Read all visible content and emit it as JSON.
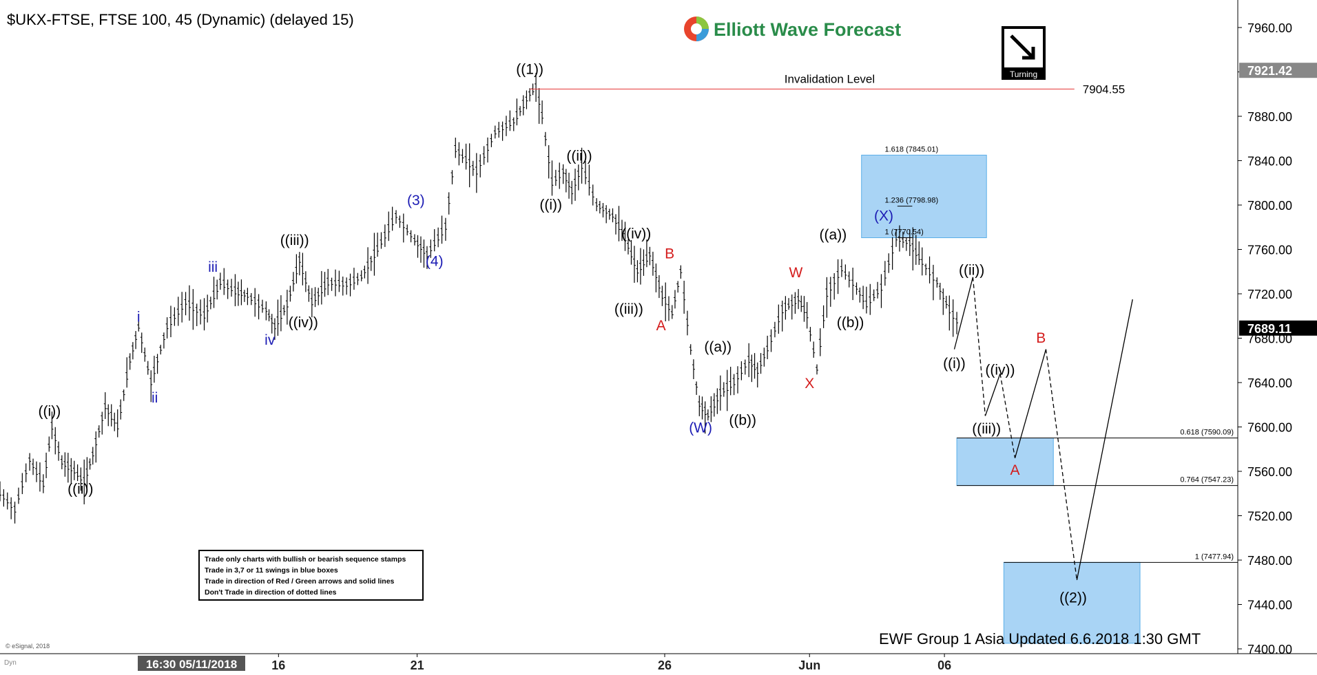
{
  "header": {
    "title": "$UKX-FTSE, FTSE 100, 45 (Dynamic) (delayed 15)",
    "logo_text": "Elliott Wave Forecast",
    "turning_label": "Turning"
  },
  "footer": {
    "update_text": "EWF Group 1 Asia Updated 6.6.2018 1:30 GMT",
    "copyright": "© eSignal, 2018",
    "dyn_label": "Dyn",
    "x_cursor_label": "16:30 05/11/2018"
  },
  "rules_box": [
    "Trade only charts with bullish or bearish sequence stamps",
    "Trade in 3,7 or 11 swings in blue boxes",
    "Trade in direction of Red / Green arrows and solid lines",
    "Don't Trade in direction of dotted lines"
  ],
  "chart_data": {
    "type": "ohlc",
    "symbol": "$UKX-FTSE",
    "timeframe": "45 min",
    "ylim": [
      7400,
      7980
    ],
    "y_ticks": [
      7400,
      7440,
      7480,
      7520,
      7560,
      7600,
      7640,
      7680,
      7720,
      7760,
      7800,
      7840,
      7880,
      7920,
      7960
    ],
    "y_tick_labels": [
      "7400.00",
      "7440.00",
      "7480.00",
      "7520.00",
      "7560.00",
      "7600.00",
      "7640.00",
      "7680.00",
      "7720.00",
      "7760.00",
      "7800.00",
      "7840.00",
      "7880.00",
      "7920.00",
      "7960.00"
    ],
    "x_ticks": [
      {
        "label": "16",
        "t": 0.225
      },
      {
        "label": "21",
        "t": 0.337
      },
      {
        "label": "26",
        "t": 0.537
      },
      {
        "label": "Jun",
        "t": 0.654
      },
      {
        "label": "06",
        "t": 0.763
      }
    ],
    "price_labels": [
      {
        "label": "7921.42",
        "price": 7921.42,
        "style": "gray"
      },
      {
        "label": "7689.11",
        "price": 7689.11,
        "style": "black"
      }
    ],
    "price_path": [
      [
        0.0,
        7540
      ],
      [
        0.012,
        7525
      ],
      [
        0.024,
        7570
      ],
      [
        0.035,
        7548
      ],
      [
        0.042,
        7600
      ],
      [
        0.05,
        7568
      ],
      [
        0.06,
        7560
      ],
      [
        0.068,
        7550
      ],
      [
        0.075,
        7575
      ],
      [
        0.085,
        7618
      ],
      [
        0.095,
        7600
      ],
      [
        0.105,
        7660
      ],
      [
        0.112,
        7690
      ],
      [
        0.122,
        7640
      ],
      [
        0.135,
        7690
      ],
      [
        0.15,
        7712
      ],
      [
        0.165,
        7700
      ],
      [
        0.178,
        7730
      ],
      [
        0.19,
        7722
      ],
      [
        0.2,
        7718
      ],
      [
        0.215,
        7705
      ],
      [
        0.222,
        7690
      ],
      [
        0.232,
        7710
      ],
      [
        0.242,
        7750
      ],
      [
        0.252,
        7712
      ],
      [
        0.265,
        7730
      ],
      [
        0.28,
        7728
      ],
      [
        0.292,
        7735
      ],
      [
        0.305,
        7760
      ],
      [
        0.32,
        7790
      ],
      [
        0.335,
        7768
      ],
      [
        0.345,
        7755
      ],
      [
        0.36,
        7780
      ],
      [
        0.368,
        7850
      ],
      [
        0.385,
        7830
      ],
      [
        0.4,
        7865
      ],
      [
        0.415,
        7875
      ],
      [
        0.428,
        7900
      ],
      [
        0.433,
        7906
      ],
      [
        0.438,
        7880
      ],
      [
        0.446,
        7820
      ],
      [
        0.455,
        7830
      ],
      [
        0.462,
        7812
      ],
      [
        0.47,
        7835
      ],
      [
        0.482,
        7800
      ],
      [
        0.495,
        7790
      ],
      [
        0.505,
        7770
      ],
      [
        0.515,
        7740
      ],
      [
        0.525,
        7755
      ],
      [
        0.535,
        7718
      ],
      [
        0.543,
        7702
      ],
      [
        0.55,
        7740
      ],
      [
        0.558,
        7670
      ],
      [
        0.565,
        7620
      ],
      [
        0.572,
        7610
      ],
      [
        0.582,
        7630
      ],
      [
        0.593,
        7640
      ],
      [
        0.605,
        7660
      ],
      [
        0.612,
        7650
      ],
      [
        0.62,
        7670
      ],
      [
        0.632,
        7705
      ],
      [
        0.645,
        7715
      ],
      [
        0.652,
        7700
      ],
      [
        0.66,
        7652
      ],
      [
        0.668,
        7720
      ],
      [
        0.68,
        7742
      ],
      [
        0.692,
        7725
      ],
      [
        0.7,
        7710
      ],
      [
        0.712,
        7725
      ],
      [
        0.724,
        7770
      ],
      [
        0.735,
        7765
      ],
      [
        0.745,
        7748
      ],
      [
        0.757,
        7730
      ],
      [
        0.767,
        7705
      ],
      [
        0.776,
        7690
      ]
    ],
    "wave_labels": [
      {
        "text": "((i))",
        "t": 0.04,
        "price": 7610,
        "color": "black"
      },
      {
        "text": "((ii))",
        "t": 0.065,
        "price": 7540,
        "color": "black"
      },
      {
        "text": "i",
        "t": 0.112,
        "price": 7695,
        "color": "blue"
      },
      {
        "text": "ii",
        "t": 0.125,
        "price": 7622,
        "color": "blue"
      },
      {
        "text": "iii",
        "t": 0.172,
        "price": 7740,
        "color": "blue"
      },
      {
        "text": "iv",
        "t": 0.218,
        "price": 7674,
        "color": "blue"
      },
      {
        "text": "((iii))",
        "t": 0.238,
        "price": 7764,
        "color": "black"
      },
      {
        "text": "((iv))",
        "t": 0.245,
        "price": 7690,
        "color": "black"
      },
      {
        "text": "(3)",
        "t": 0.336,
        "price": 7800,
        "color": "blue"
      },
      {
        "text": "(4)",
        "t": 0.351,
        "price": 7745,
        "color": "blue"
      },
      {
        "text": "((1))",
        "t": 0.428,
        "price": 7918,
        "color": "black"
      },
      {
        "text": "((ii))",
        "t": 0.468,
        "price": 7840,
        "color": "black"
      },
      {
        "text": "((i))",
        "t": 0.445,
        "price": 7796,
        "color": "black"
      },
      {
        "text": "((iv))",
        "t": 0.514,
        "price": 7770,
        "color": "black"
      },
      {
        "text": "((iii))",
        "t": 0.508,
        "price": 7702,
        "color": "black"
      },
      {
        "text": "B",
        "t": 0.541,
        "price": 7752,
        "color": "red"
      },
      {
        "text": "A",
        "t": 0.534,
        "price": 7687,
        "color": "red"
      },
      {
        "text": "((a))",
        "t": 0.58,
        "price": 7668,
        "color": "black"
      },
      {
        "text": "(W)",
        "t": 0.566,
        "price": 7595,
        "color": "blue"
      },
      {
        "text": "((b))",
        "t": 0.6,
        "price": 7602,
        "color": "black"
      },
      {
        "text": "W",
        "t": 0.643,
        "price": 7735,
        "color": "red"
      },
      {
        "text": "X",
        "t": 0.654,
        "price": 7635,
        "color": "red"
      },
      {
        "text": "((a))",
        "t": 0.673,
        "price": 7769,
        "color": "black"
      },
      {
        "text": "((b))",
        "t": 0.687,
        "price": 7690,
        "color": "black"
      },
      {
        "text": "(X)",
        "t": 0.714,
        "price": 7786,
        "color": "blue"
      },
      {
        "text": "((ii))",
        "t": 0.785,
        "price": 7737,
        "color": "black"
      },
      {
        "text": "((i))",
        "t": 0.771,
        "price": 7653,
        "color": "black"
      },
      {
        "text": "((iv))",
        "t": 0.808,
        "price": 7647,
        "color": "black"
      },
      {
        "text": "((iii))",
        "t": 0.797,
        "price": 7594,
        "color": "black"
      },
      {
        "text": "B",
        "t": 0.841,
        "price": 7676,
        "color": "red"
      },
      {
        "text": "A",
        "t": 0.82,
        "price": 7557,
        "color": "red"
      },
      {
        "text": "((2))",
        "t": 0.867,
        "price": 7442,
        "color": "black"
      }
    ],
    "invalidation": {
      "label": "Invalidation Level",
      "value": 7904.55,
      "value_label": "7904.55",
      "t_start": 0.428,
      "t_end": 0.868
    },
    "projection_solid": [
      [
        0.771,
        7670
      ],
      [
        0.786,
        7735
      ]
    ],
    "projection_dashed": [
      [
        0.786,
        7735
      ],
      [
        0.796,
        7610
      ]
    ],
    "projection_solid2": [
      [
        0.796,
        7610
      ],
      [
        0.808,
        7648
      ]
    ],
    "projection_dashed2": [
      [
        0.808,
        7648
      ],
      [
        0.82,
        7572
      ]
    ],
    "projection_solid3": [
      [
        0.82,
        7572
      ],
      [
        0.845,
        7670
      ]
    ],
    "projection_dashed3": [
      [
        0.845,
        7670
      ],
      [
        0.87,
        7462
      ]
    ],
    "projection_solid4": [
      [
        0.87,
        7462
      ],
      [
        0.915,
        7715
      ]
    ],
    "blue_boxes": [
      {
        "t0": 0.696,
        "t1": 0.797,
        "p0": 7770.54,
        "p1": 7845.01
      },
      {
        "t0": 0.773,
        "t1": 0.851,
        "p0": 7547.23,
        "p1": 7590.09
      },
      {
        "t0": 0.811,
        "t1": 0.921,
        "p0": 7405,
        "p1": 7477.94
      }
    ],
    "fib_levels": [
      {
        "label": "1.618 (7845.01)",
        "price": 7845.01,
        "t0": 0.696,
        "t1": 0.797,
        "line": false,
        "label_t": 0.766
      },
      {
        "label": "1.236 (7798.98)",
        "price": 7798.98,
        "t0": 0.725,
        "t1": 0.737,
        "line": true,
        "label_t": 0.766
      },
      {
        "label": "1 (7770.54)",
        "price": 7770.54,
        "t0": 0.725,
        "t1": 0.737,
        "line": true,
        "label_t": 0.766
      },
      {
        "label": "0.618 (7590.09)",
        "price": 7590.09,
        "t0": 0.773,
        "t1": 1.0,
        "line": true,
        "label_t": 0.97
      },
      {
        "label": "0.764 (7547.23)",
        "price": 7547.23,
        "t0": 0.773,
        "t1": 1.0,
        "line": true,
        "label_t": 0.97
      },
      {
        "label": "1 (7477.94)",
        "price": 7477.94,
        "t0": 0.811,
        "t1": 1.0,
        "line": true,
        "label_t": 0.97
      }
    ]
  }
}
